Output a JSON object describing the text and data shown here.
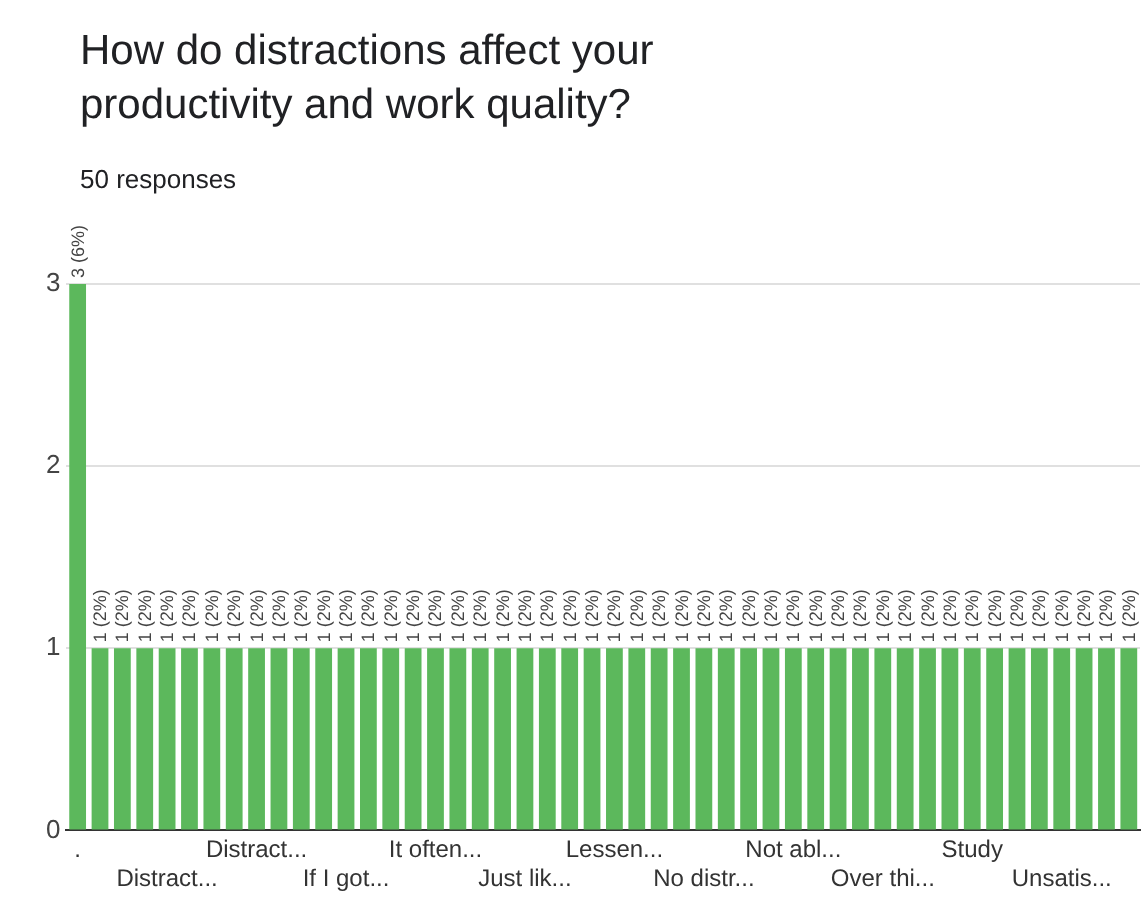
{
  "chart_data": {
    "type": "bar",
    "title": "How do distractions affect your productivity and work quality?",
    "subtitle": "50 responses",
    "categories": [
      ".",
      null,
      null,
      null,
      "Distract...",
      null,
      null,
      null,
      "Distract...",
      null,
      null,
      null,
      "If I got...",
      null,
      null,
      null,
      "It often...",
      null,
      null,
      null,
      "Just lik...",
      null,
      null,
      null,
      "Lessen...",
      null,
      null,
      null,
      "No distr...",
      null,
      null,
      null,
      "Not abl...",
      null,
      null,
      null,
      "Over thi...",
      null,
      null,
      null,
      "Study",
      null,
      null,
      null,
      "Unsatis...",
      null,
      null,
      null
    ],
    "values": [
      3,
      1,
      1,
      1,
      1,
      1,
      1,
      1,
      1,
      1,
      1,
      1,
      1,
      1,
      1,
      1,
      1,
      1,
      1,
      1,
      1,
      1,
      1,
      1,
      1,
      1,
      1,
      1,
      1,
      1,
      1,
      1,
      1,
      1,
      1,
      1,
      1,
      1,
      1,
      1,
      1,
      1,
      1,
      1,
      1,
      1,
      1,
      1
    ],
    "value_labels": [
      "3 (6%)",
      "1 (2%)",
      "1 (2%)",
      "1 (2%)",
      "1 (2%)",
      "1 (2%)",
      "1 (2%)",
      "1 (2%)",
      "1 (2%)",
      "1 (2%)",
      "1 (2%)",
      "1 (2%)",
      "1 (2%)",
      "1 (2%)",
      "1 (2%)",
      "1 (2%)",
      "1 (2%)",
      "1 (2%)",
      "1 (2%)",
      "1 (2%)",
      "1 (2%)",
      "1 (2%)",
      "1 (2%)",
      "1 (2%)",
      "1 (2%)",
      "1 (2%)",
      "1 (2%)",
      "1 (2%)",
      "1 (2%)",
      "1 (2%)",
      "1 (2%)",
      "1 (2%)",
      "1 (2%)",
      "1 (2%)",
      "1 (2%)",
      "1 (2%)",
      "1 (2%)",
      "1 (2%)",
      "1 (2%)",
      "1 (2%)",
      "1 (2%)",
      "1 (2%)",
      "1 (2%)",
      "1 (2%)",
      "1 (2%)",
      "1 (2%)",
      "1 (2%)",
      "1 (2%)"
    ],
    "color": "#5cb85c",
    "ylim": [
      0,
      3
    ],
    "yticks": [
      0,
      1,
      2,
      3
    ],
    "grid": "y",
    "legend": false
  }
}
